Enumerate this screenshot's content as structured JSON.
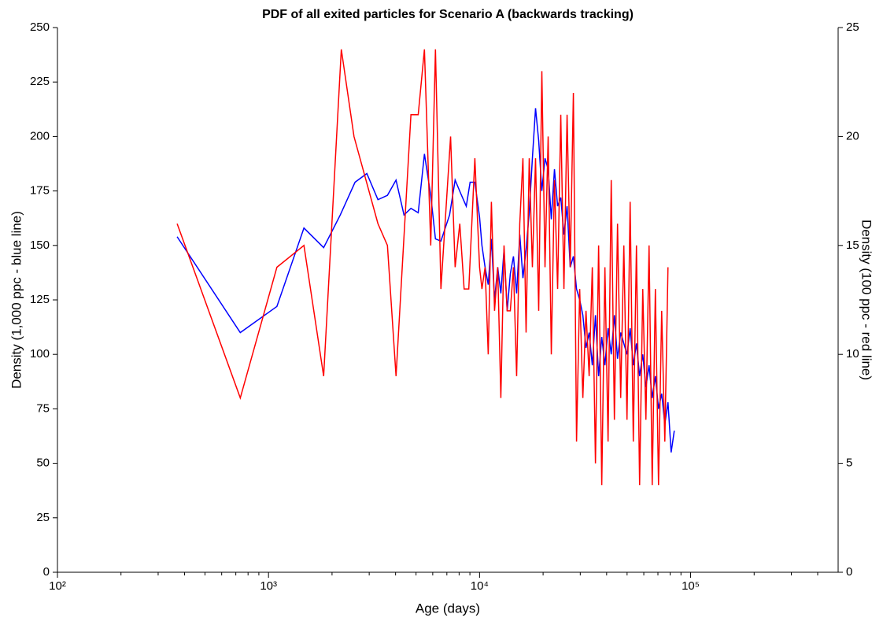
{
  "chart_data": {
    "type": "line",
    "title": "PDF of all exited particles for Scenario A (backwards tracking)",
    "xlabel": "Age (days)",
    "ylabel": "Density (1,000 ppc - blue line)",
    "y2label": "Density (100 ppc - red line)",
    "xscale": "log",
    "xlim": [
      100,
      500000
    ],
    "xticks": [
      {
        "value": 100,
        "label": "10²"
      },
      {
        "value": 1000,
        "label": "10³"
      },
      {
        "value": 10000,
        "label": "10⁴"
      },
      {
        "value": 100000,
        "label": "10⁵"
      }
    ],
    "xminorticks": [
      200,
      300,
      400,
      500,
      600,
      700,
      800,
      900,
      2000,
      3000,
      4000,
      5000,
      6000,
      7000,
      8000,
      9000,
      20000,
      30000,
      40000,
      50000,
      60000,
      70000,
      80000,
      90000,
      200000,
      300000,
      400000
    ],
    "ylim": [
      0,
      250
    ],
    "yticks": [
      0,
      25,
      50,
      75,
      100,
      125,
      150,
      175,
      200,
      225,
      250
    ],
    "y2lim": [
      0,
      25
    ],
    "y2ticks": [
      0,
      5,
      10,
      15,
      20,
      25
    ],
    "grid": false,
    "series": [
      {
        "color": "#0000ff",
        "axis": "y",
        "x": [
          369,
          735,
          1096,
          1472,
          1825,
          2188,
          2570,
          2924,
          3300,
          3660,
          4020,
          4385,
          4730,
          5120,
          5480,
          5870,
          6180,
          6560,
          7210,
          7660,
          8130,
          8650,
          9020,
          9500,
          10000,
          10262,
          10621,
          10993,
          11378,
          11776,
          12188,
          12615,
          13057,
          13514,
          13987,
          14476,
          14983,
          15507,
          16050,
          16612,
          17193,
          17795,
          18418,
          19063,
          19730,
          20421,
          21135,
          21875,
          22641,
          23433,
          24254,
          25103,
          25981,
          26890,
          27832,
          28806,
          29814,
          30858,
          31938,
          33056,
          34213,
          35410,
          36649,
          37932,
          39260,
          40634,
          42056,
          43528,
          45052,
          46628,
          48260,
          49950,
          51698,
          53507,
          55380,
          57318,
          59324,
          61401,
          63550,
          65774,
          68076,
          70459,
          72925,
          75477,
          78119,
          80853,
          83683
        ],
        "values": [
          154,
          110,
          122,
          158,
          149,
          164,
          179,
          183,
          171,
          173,
          180,
          164,
          167,
          165,
          192,
          173,
          153,
          152,
          164,
          180,
          174,
          168,
          179,
          179,
          163,
          150,
          140,
          132,
          153,
          125,
          140,
          128,
          148,
          120,
          137,
          145,
          128,
          155,
          135,
          148,
          165,
          190,
          213,
          198,
          175,
          190,
          185,
          162,
          185,
          168,
          172,
          155,
          168,
          140,
          145,
          130,
          125,
          118,
          103,
          110,
          95,
          118,
          90,
          108,
          95,
          112,
          100,
          118,
          98,
          110,
          105,
          100,
          112,
          95,
          105,
          90,
          100,
          85,
          95,
          80,
          90,
          75,
          82,
          68,
          78,
          55,
          65
        ]
      },
      {
        "color": "#ff0000",
        "axis": "y2",
        "x": [
          369,
          735,
          1096,
          1472,
          1825,
          2213,
          2541,
          3300,
          3660,
          4020,
          4730,
          5120,
          5480,
          5870,
          6180,
          6560,
          7290,
          7660,
          8060,
          8450,
          8890,
          9500,
          10000,
          10262,
          10621,
          10993,
          11378,
          11776,
          12188,
          12615,
          13057,
          13514,
          13987,
          14476,
          14983,
          15507,
          16050,
          16612,
          17193,
          17795,
          18418,
          19063,
          19730,
          20421,
          21135,
          21875,
          22641,
          23433,
          24254,
          25103,
          25981,
          26890,
          27832,
          28806,
          29814,
          30858,
          31938,
          33056,
          34213,
          35410,
          36649,
          37932,
          39260,
          40634,
          42056,
          43528,
          45052,
          46628,
          48260,
          49950,
          51698,
          53507,
          55380,
          57318,
          59324,
          61401,
          63550,
          65774,
          68076,
          70459,
          72925,
          75477,
          78119
        ],
        "values": [
          16,
          8,
          14,
          15,
          9,
          24,
          20,
          16,
          15,
          9,
          21,
          21,
          24,
          15,
          24,
          13,
          20,
          14,
          16,
          13,
          13,
          19,
          14,
          13,
          14,
          10,
          17,
          12,
          14,
          8,
          15,
          12,
          12,
          14,
          9,
          16,
          19,
          11,
          19,
          14,
          19,
          12,
          23,
          14,
          20,
          10,
          18,
          13,
          21,
          13,
          21,
          14,
          22,
          6,
          13,
          8,
          12,
          9,
          14,
          5,
          15,
          4,
          14,
          6,
          18,
          7,
          16,
          8,
          15,
          7,
          17,
          6,
          15,
          4,
          13,
          7,
          15,
          4,
          13,
          4,
          12,
          6,
          14
        ]
      }
    ]
  }
}
